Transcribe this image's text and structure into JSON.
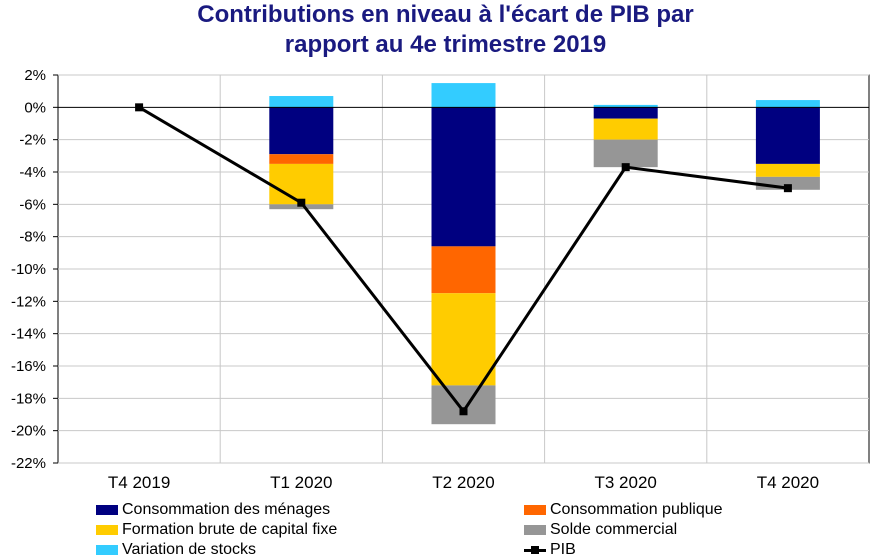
{
  "chart_data": {
    "type": "bar",
    "title_line1": "Contributions en niveau à l'écart de PIB par",
    "title_line2": "rapport au 4e trimestre 2019",
    "categories": [
      "T4 2019",
      "T1 2020",
      "T2 2020",
      "T3 2020",
      "T4 2020"
    ],
    "ylim": [
      -22,
      2
    ],
    "yticks": [
      2,
      0,
      -2,
      -4,
      -6,
      -8,
      -10,
      -12,
      -14,
      -16,
      -18,
      -20,
      -22
    ],
    "ytick_labels": [
      "2%",
      "0%",
      "-2%",
      "-4%",
      "-6%",
      "-8%",
      "-10%",
      "-12%",
      "-14%",
      "-16%",
      "-18%",
      "-20%",
      "-22%"
    ],
    "grid": true,
    "stacked": true,
    "series": [
      {
        "name": "Consommation des ménages",
        "color": "#000080",
        "values": [
          0,
          -2.9,
          -8.6,
          -0.7,
          -3.5
        ]
      },
      {
        "name": "Consommation publique",
        "color": "#ff6600",
        "values": [
          0,
          -0.6,
          -2.9,
          0.0,
          0.0
        ]
      },
      {
        "name": "Formation brute de capital fixe",
        "color": "#ffcc00",
        "values": [
          0,
          -2.5,
          -5.7,
          -1.3,
          -0.8
        ]
      },
      {
        "name": "Solde commercial",
        "color": "#969696",
        "values": [
          0,
          -0.3,
          -2.4,
          -1.7,
          -0.8
        ]
      },
      {
        "name": "Variation de stocks",
        "color": "#33ccff",
        "values": [
          0,
          0.7,
          1.5,
          0.15,
          0.45
        ]
      }
    ],
    "line": {
      "name": "PIB",
      "color": "#000000",
      "values": [
        0,
        -5.9,
        -18.8,
        -3.7,
        -5.0
      ]
    }
  }
}
